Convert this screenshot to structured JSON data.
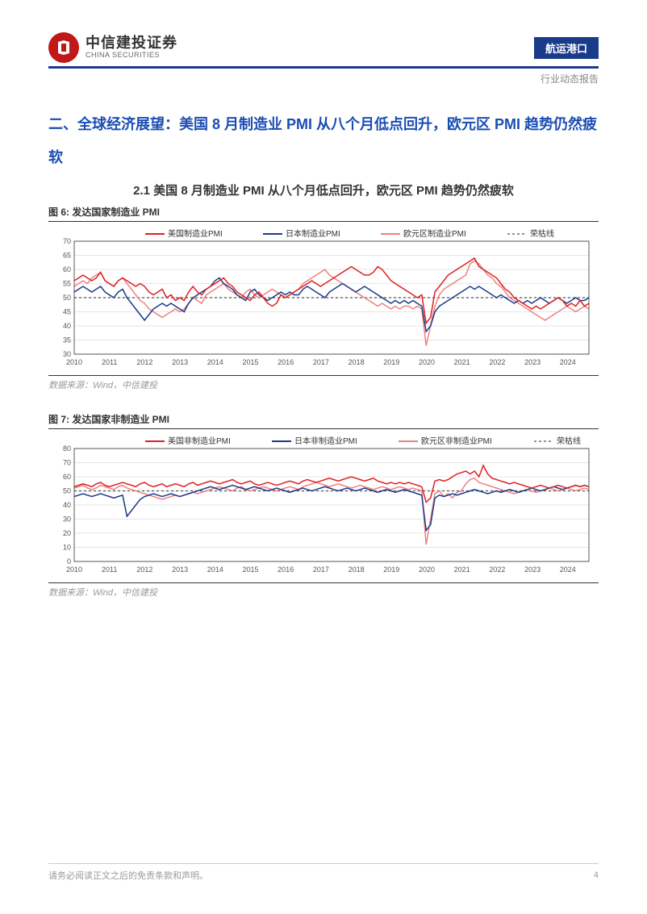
{
  "header": {
    "logo_cn": "中信建投证券",
    "logo_en": "CHINA SECURITIES",
    "category": "航运港口",
    "subtitle": "行业动态报告"
  },
  "section": {
    "title": "二、全球经济展望：美国 8 月制造业 PMI 从八个月低点回升，欧元区 PMI 趋势仍然疲软",
    "subtitle": "2.1 美国 8 月制造业 PMI 从八个月低点回升，欧元区 PMI 趋势仍然疲软"
  },
  "chart1": {
    "title": "图 6: 发达国家制造业 PMI",
    "type": "line",
    "legend": [
      "美国制造业PMI",
      "日本制造业PMI",
      "欧元区制造业PMI",
      "荣枯线"
    ],
    "colors": {
      "us": "#e02020",
      "jp": "#1a3a8a",
      "eu": "#f08080",
      "baseline": "#555",
      "grid": "#dddddd",
      "axis": "#333333",
      "bg": "#ffffff"
    },
    "line_widths": {
      "us": 1.5,
      "jp": 1.5,
      "eu": 1.5,
      "baseline": 1.2
    },
    "baseline_dash": "3,3",
    "xlim": [
      2010,
      2024.6
    ],
    "ylim": [
      30,
      70
    ],
    "ytick_step": 5,
    "xtick_step": 1,
    "x_labels": [
      "2010",
      "2011",
      "2012",
      "2013",
      "2014",
      "2015",
      "2016",
      "2017",
      "2018",
      "2019",
      "2020",
      "2021",
      "2022",
      "2023",
      "2024"
    ],
    "baseline": 50,
    "font_size_labels": 9,
    "font_size_legend": 10,
    "series": {
      "us": [
        56,
        57,
        58,
        57,
        56,
        57,
        59,
        56,
        55,
        54,
        56,
        57,
        56,
        55,
        54,
        55,
        54,
        52,
        51,
        52,
        53,
        50,
        51,
        49,
        50,
        49,
        52,
        54,
        52,
        51,
        53,
        54,
        55,
        56,
        57,
        55,
        54,
        52,
        51,
        50,
        49,
        51,
        52,
        50,
        48,
        47,
        48,
        51,
        50,
        51,
        52,
        53,
        54,
        55,
        56,
        55,
        54,
        55,
        56,
        57,
        58,
        59,
        60,
        61,
        60,
        59,
        58,
        58,
        59,
        61,
        60,
        58,
        56,
        55,
        54,
        53,
        52,
        51,
        50,
        51,
        41,
        43,
        52,
        54,
        56,
        58,
        59,
        60,
        61,
        62,
        63,
        64,
        61,
        60,
        59,
        58,
        57,
        55,
        53,
        52,
        50,
        49,
        48,
        47,
        46,
        47,
        46,
        47,
        48,
        49,
        50,
        49,
        47,
        48,
        47,
        49,
        47,
        48
      ],
      "jp": [
        52,
        53,
        54,
        53,
        52,
        53,
        54,
        52,
        51,
        50,
        52,
        53,
        50,
        48,
        46,
        44,
        42,
        44,
        46,
        47,
        48,
        47,
        48,
        47,
        46,
        45,
        48,
        50,
        51,
        52,
        53,
        54,
        56,
        57,
        55,
        54,
        53,
        51,
        50,
        49,
        52,
        53,
        51,
        50,
        49,
        50,
        51,
        52,
        51,
        52,
        51,
        51,
        53,
        54,
        53,
        52,
        51,
        50,
        52,
        53,
        54,
        55,
        54,
        53,
        52,
        53,
        54,
        53,
        52,
        51,
        50,
        49,
        48,
        49,
        48,
        49,
        48,
        49,
        48,
        47,
        38,
        40,
        45,
        47,
        48,
        49,
        50,
        51,
        52,
        53,
        54,
        53,
        54,
        53,
        52,
        51,
        50,
        51,
        50,
        49,
        48,
        49,
        48,
        49,
        48,
        49,
        50,
        49,
        48,
        49,
        50,
        49,
        48,
        49,
        50,
        49,
        49,
        50
      ],
      "eu": [
        54,
        55,
        56,
        55,
        57,
        58,
        59,
        56,
        55,
        54,
        56,
        57,
        55,
        53,
        51,
        49,
        48,
        46,
        45,
        44,
        43,
        44,
        45,
        46,
        45,
        46,
        48,
        50,
        49,
        48,
        51,
        52,
        53,
        54,
        55,
        53,
        52,
        51,
        50,
        52,
        53,
        51,
        50,
        51,
        52,
        53,
        52,
        51,
        50,
        51,
        52,
        53,
        55,
        56,
        57,
        58,
        59,
        60,
        58,
        57,
        56,
        55,
        54,
        53,
        52,
        51,
        50,
        49,
        48,
        47,
        48,
        47,
        46,
        47,
        46,
        47,
        47,
        46,
        47,
        46,
        33,
        40,
        47,
        51,
        53,
        54,
        55,
        56,
        57,
        58,
        62,
        63,
        62,
        60,
        58,
        57,
        55,
        54,
        52,
        50,
        49,
        48,
        47,
        46,
        45,
        44,
        43,
        42,
        43,
        44,
        45,
        46,
        47,
        46,
        45,
        46,
        47,
        46
      ]
    },
    "source": "数据来源：Wind，中信建投"
  },
  "chart2": {
    "title": "图 7: 发达国家非制造业 PMI",
    "type": "line",
    "legend": [
      "美国非制造业PMI",
      "日本非制造业PMI",
      "欧元区非制造业PMI",
      "荣枯线"
    ],
    "colors": {
      "us": "#e02020",
      "jp": "#1a3a8a",
      "eu": "#f08080",
      "baseline": "#555",
      "grid": "#dddddd",
      "axis": "#333333",
      "bg": "#ffffff"
    },
    "line_widths": {
      "us": 1.5,
      "jp": 1.5,
      "eu": 1.5,
      "baseline": 1.2
    },
    "baseline_dash": "3,3",
    "xlim": [
      2010,
      2024.6
    ],
    "ylim": [
      0,
      80
    ],
    "ytick_step": 10,
    "xtick_step": 1,
    "x_labels": [
      "2010",
      "2011",
      "2012",
      "2013",
      "2014",
      "2015",
      "2016",
      "2017",
      "2018",
      "2019",
      "2020",
      "2021",
      "2022",
      "2023",
      "2024"
    ],
    "baseline": 50,
    "font_size_labels": 9,
    "font_size_legend": 10,
    "series": {
      "us": [
        53,
        54,
        55,
        54,
        53,
        55,
        56,
        54,
        53,
        54,
        55,
        56,
        55,
        54,
        53,
        55,
        56,
        54,
        53,
        54,
        55,
        53,
        54,
        55,
        54,
        53,
        55,
        56,
        54,
        55,
        56,
        57,
        56,
        55,
        56,
        57,
        58,
        56,
        55,
        56,
        57,
        55,
        54,
        55,
        56,
        55,
        54,
        55,
        56,
        57,
        56,
        55,
        57,
        58,
        57,
        56,
        57,
        58,
        59,
        58,
        57,
        58,
        59,
        60,
        59,
        58,
        57,
        58,
        59,
        57,
        56,
        55,
        56,
        55,
        56,
        55,
        56,
        55,
        54,
        53,
        42,
        45,
        57,
        58,
        57,
        58,
        60,
        62,
        63,
        64,
        62,
        64,
        60,
        68,
        62,
        59,
        58,
        57,
        56,
        55,
        56,
        55,
        54,
        53,
        52,
        53,
        54,
        53,
        52,
        53,
        54,
        53,
        52,
        53,
        54,
        53,
        54,
        53
      ],
      "jp": [
        46,
        47,
        48,
        47,
        46,
        47,
        48,
        47,
        46,
        45,
        46,
        47,
        32,
        36,
        40,
        44,
        46,
        47,
        48,
        47,
        46,
        47,
        48,
        47,
        46,
        47,
        48,
        49,
        50,
        51,
        52,
        53,
        52,
        51,
        52,
        53,
        54,
        53,
        52,
        51,
        52,
        53,
        52,
        51,
        50,
        51,
        52,
        51,
        50,
        49,
        50,
        51,
        52,
        51,
        50,
        51,
        52,
        53,
        52,
        51,
        50,
        51,
        52,
        51,
        50,
        51,
        52,
        51,
        50,
        49,
        50,
        51,
        50,
        49,
        50,
        51,
        50,
        49,
        48,
        47,
        22,
        26,
        45,
        47,
        46,
        47,
        48,
        47,
        48,
        49,
        50,
        51,
        50,
        49,
        48,
        49,
        50,
        49,
        50,
        51,
        50,
        49,
        50,
        51,
        52,
        51,
        50,
        51,
        52,
        53,
        52,
        51,
        52,
        53,
        54,
        53,
        54,
        53
      ],
      "eu": [
        52,
        53,
        54,
        52,
        51,
        52,
        54,
        53,
        52,
        51,
        53,
        54,
        52,
        51,
        50,
        49,
        48,
        47,
        46,
        45,
        44,
        45,
        46,
        47,
        46,
        47,
        48,
        49,
        48,
        49,
        50,
        51,
        52,
        53,
        52,
        51,
        50,
        52,
        53,
        51,
        50,
        51,
        52,
        53,
        52,
        51,
        50,
        51,
        52,
        53,
        52,
        51,
        53,
        54,
        55,
        56,
        55,
        54,
        53,
        54,
        55,
        54,
        53,
        52,
        53,
        54,
        53,
        52,
        51,
        52,
        53,
        52,
        51,
        52,
        53,
        52,
        51,
        52,
        51,
        50,
        12,
        30,
        48,
        50,
        46,
        48,
        45,
        49,
        50,
        55,
        58,
        59,
        56,
        55,
        54,
        53,
        52,
        51,
        50,
        49,
        48,
        49,
        50,
        51,
        50,
        49,
        50,
        51,
        52,
        51,
        50,
        51,
        52,
        51,
        50,
        51,
        52,
        51
      ]
    },
    "source": "数据来源：Wind，中信建投"
  },
  "footer": {
    "disclaimer": "请务必阅读正文之后的免责条款和声明。",
    "page": "4"
  }
}
